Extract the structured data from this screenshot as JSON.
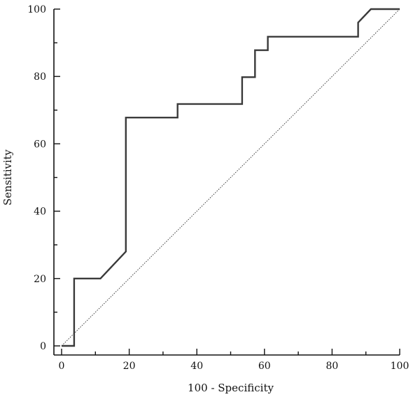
{
  "chart_data": {
    "type": "line",
    "title": "",
    "xlabel": "100 - Specificity",
    "ylabel": "Sensitivity",
    "xlim": [
      0,
      100
    ],
    "ylim": [
      0,
      100
    ],
    "xticks": [
      "0",
      "20",
      "40",
      "60",
      "80",
      "100"
    ],
    "yticks": [
      "0",
      "20",
      "40",
      "60",
      "80",
      "100"
    ],
    "grid": false,
    "series": [
      {
        "name": "",
        "style": "step",
        "color": "#3a3a3a",
        "points": [
          [
            0,
            0
          ],
          [
            3.7,
            0
          ],
          [
            3.7,
            20
          ],
          [
            11.5,
            20
          ],
          [
            19,
            28
          ],
          [
            19,
            67.8
          ],
          [
            34.3,
            67.8
          ],
          [
            34.3,
            71.8
          ],
          [
            53.4,
            71.8
          ],
          [
            53.4,
            79.8
          ],
          [
            57.2,
            79.8
          ],
          [
            57.2,
            87.8
          ],
          [
            61,
            87.8
          ],
          [
            61,
            91.8
          ],
          [
            87.7,
            91.8
          ],
          [
            87.7,
            96
          ],
          [
            91.5,
            100
          ],
          [
            100,
            100
          ]
        ]
      },
      {
        "name": "",
        "style": "dotted",
        "color": "#333333",
        "points": [
          [
            0,
            0
          ],
          [
            100,
            100
          ]
        ]
      }
    ]
  }
}
